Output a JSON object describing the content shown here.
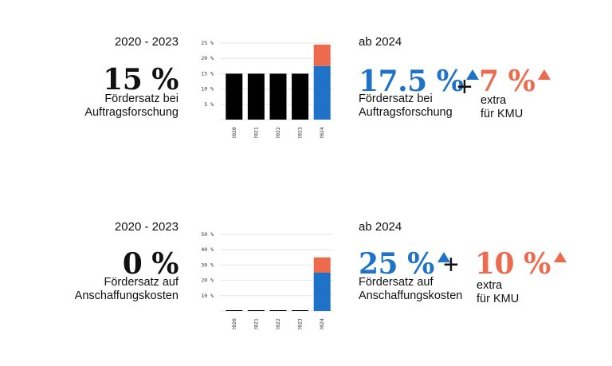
{
  "panels": [
    {
      "left_period": "2020 - 2023",
      "left_value": "15 %",
      "left_desc_1": "Fördersatz bei",
      "left_desc_2": "Auftragsforschung",
      "right_period": "ab 2024",
      "right_value": "17.5 %",
      "right_desc_1": "Fördersatz bei",
      "right_desc_2": "Auftragsforschung",
      "plus": "+",
      "extra_value": "7 %",
      "extra_desc_1": "extra",
      "extra_desc_2": "für KMU"
    },
    {
      "left_period": "2020 - 2023",
      "left_value": "0 %",
      "left_desc_1": "Fördersatz auf",
      "left_desc_2": "Anschaffungskosten",
      "right_period": "ab 2024",
      "right_value": "25 %",
      "right_desc_1": "Fördersatz auf",
      "right_desc_2": "Anschaffungskosten",
      "plus": "+",
      "extra_value": "10 %",
      "extra_desc_1": "extra",
      "extra_desc_2": "für KMU"
    }
  ],
  "colors": {
    "base": "#000000",
    "blue": "#1e73c8",
    "orange": "#ec6a4d",
    "grid": "#e6e6e6"
  },
  "chart_data": [
    {
      "type": "bar",
      "categories": [
        "2020",
        "2021",
        "2022",
        "2023",
        "2024"
      ],
      "series": [
        {
          "values": [
            15,
            15,
            15,
            15,
            17.5
          ]
        },
        {
          "values": [
            0,
            0,
            0,
            0,
            7
          ]
        }
      ],
      "yticks": [
        5,
        10,
        15,
        20,
        25
      ],
      "ytick_labels": [
        "5 %",
        "10 %",
        "15 %",
        "20 %",
        "25 %"
      ],
      "ylim": [
        0,
        25
      ],
      "grid": true
    },
    {
      "type": "bar",
      "categories": [
        "2020",
        "2021",
        "2022",
        "2023",
        "2024"
      ],
      "series": [
        {
          "values": [
            0,
            0,
            0,
            0,
            25
          ]
        },
        {
          "values": [
            0,
            0,
            0,
            0,
            10
          ]
        }
      ],
      "yticks": [
        10,
        20,
        30,
        40,
        50
      ],
      "ytick_labels": [
        "10 %",
        "20 %",
        "30 %",
        "40 %",
        "50 %"
      ],
      "ylim": [
        0,
        50
      ],
      "grid": true
    }
  ]
}
